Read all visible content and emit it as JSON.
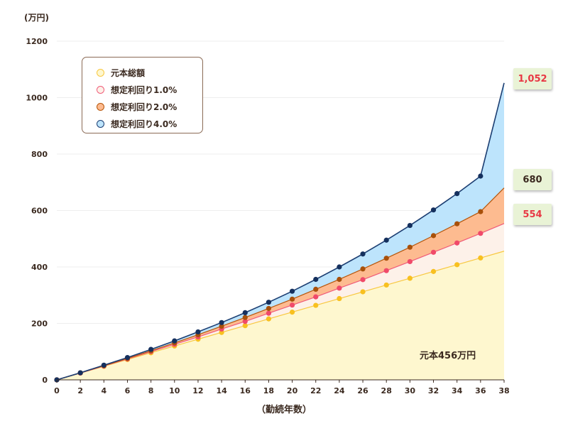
{
  "chart_data": {
    "type": "area",
    "unit_label": "(万円)",
    "xlabel": "（勤続年数）",
    "ylabel": "",
    "xlim": [
      0,
      38
    ],
    "ylim": [
      0,
      1200
    ],
    "x_ticks": [
      0,
      2,
      4,
      6,
      8,
      10,
      12,
      14,
      16,
      18,
      20,
      22,
      24,
      26,
      28,
      30,
      32,
      34,
      36,
      38
    ],
    "y_ticks": [
      0,
      200,
      400,
      600,
      800,
      1000,
      1200
    ],
    "x": [
      0,
      2,
      4,
      6,
      8,
      10,
      12,
      14,
      16,
      18,
      20,
      22,
      24,
      26,
      28,
      30,
      32,
      34,
      36,
      38
    ],
    "series": [
      {
        "name": "元本総額",
        "fill": "#fef7cf",
        "line": "#f8c840",
        "marker": "#f8c020",
        "swatch": "#fef7cf",
        "values": [
          0,
          24,
          48,
          72,
          96,
          120,
          144,
          168,
          192,
          216,
          240,
          264,
          288,
          312,
          336,
          360,
          384,
          408,
          432,
          456
        ]
      },
      {
        "name": "想定利回り1.0%",
        "fill": "#fdf1e9",
        "line": "#f05a78",
        "marker": "#f04a6a",
        "swatch": "#fdf1e9",
        "values": [
          0,
          24,
          49,
          74,
          100,
          126,
          152,
          180,
          207,
          236,
          265,
          294,
          325,
          355,
          387,
          419,
          452,
          485,
          519,
          554
        ]
      },
      {
        "name": "想定利回り2.0%",
        "fill": "#fdbb90",
        "line": "#b75508",
        "marker": "#a8500a",
        "swatch": "#fdbb90",
        "values": [
          0,
          25,
          50,
          76,
          103,
          131,
          160,
          190,
          221,
          253,
          286,
          321,
          356,
          393,
          431,
          470,
          511,
          553,
          596,
          680
        ]
      },
      {
        "name": "想定利回り4.0%",
        "fill": "#bde4fc",
        "line": "#1c3e72",
        "marker": "#15305e",
        "swatch": "#bde4fc",
        "values": [
          0,
          25,
          52,
          79,
          108,
          138,
          170,
          203,
          238,
          275,
          314,
          356,
          400,
          446,
          495,
          547,
          602,
          660,
          722,
          1052
        ]
      }
    ],
    "callouts": [
      {
        "text": "1,052",
        "color": "#e83844"
      },
      {
        "text": "680",
        "color": "#3b2a20"
      },
      {
        "text": "554",
        "color": "#e83844"
      }
    ],
    "principal_note": "元本456万円",
    "legend_position": "top-left",
    "grid": "horizontal"
  }
}
